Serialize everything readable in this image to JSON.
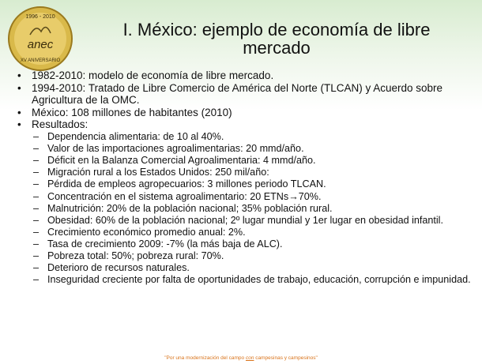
{
  "logo": {
    "years": "1996 - 2010",
    "name": "anec",
    "anniversary": "XV ANIVERSARIO"
  },
  "title": "I. México: ejemplo de economía de libre mercado",
  "bullets": [
    "1982-2010: modelo de economía de libre mercado.",
    "1994-2010: Tratado de Libre Comercio de América del Norte (TLCAN) y Acuerdo sobre Agricultura de la OMC.",
    "México: 108 millones de habitantes (2010)",
    "Resultados:"
  ],
  "results": [
    "Dependencia alimentaria: de 10 al 40%.",
    "Valor de las importaciones agroalimentarias: 20 mmd/año.",
    "Déficit en la Balanza Comercial Agroalimentaria: 4 mmd/año.",
    "Migración rural a los Estados Unidos: 250 mil/año:",
    "Pérdida de empleos agropecuarios: 3 millones periodo TLCAN.",
    "Concentración en el sistema agroalimentario: 20 ETNs→70%.",
    "Malnutrición: 20% de la población nacional; 35% población rural.",
    "Obesidad: 60% de la población nacional; 2º lugar mundial y 1er lugar en obesidad infantil.",
    "Crecimiento económico promedio anual: 2%.",
    "Tasa de crecimiento 2009: -7% (la más baja de ALC).",
    "Pobreza total: 50%; pobreza rural: 70%.",
    "Deterioro de recursos naturales.",
    "Inseguridad creciente por falta de oportunidades de trabajo, educación, corrupción e impunidad."
  ],
  "footer": {
    "before": "\"Por una modernización del campo ",
    "emphasis": "con",
    "after": " campesinas y campesinos\""
  }
}
